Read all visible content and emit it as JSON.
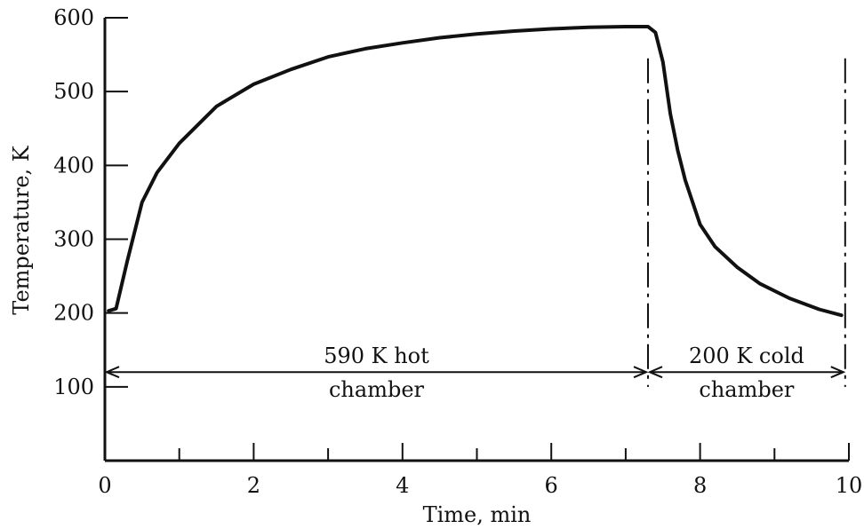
{
  "chart_data": {
    "type": "line",
    "xlabel": "Time, min",
    "ylabel": "Temperature, K",
    "xlim": [
      0,
      10
    ],
    "ylim": [
      0,
      600
    ],
    "x_ticks": [
      0,
      2,
      4,
      6,
      8,
      10
    ],
    "x_minor_ticks": [
      1,
      3,
      5,
      7,
      9
    ],
    "y_ticks": [
      100,
      200,
      300,
      400,
      500,
      600
    ],
    "grid": false,
    "series": [
      {
        "x": [
          0.05,
          0.15,
          0.3,
          0.5,
          0.7,
          1.0,
          1.5,
          2.0,
          2.5,
          3.0,
          3.5,
          4.0,
          4.5,
          5.0,
          5.5,
          6.0,
          6.5,
          7.0,
          7.3,
          7.4,
          7.5,
          7.6,
          7.7,
          7.8,
          8.0,
          8.2,
          8.5,
          8.8,
          9.2,
          9.6,
          9.9
        ],
        "y": [
          203,
          206,
          270,
          350,
          390,
          430,
          480,
          510,
          530,
          547,
          558,
          566,
          573,
          578,
          582,
          585,
          587,
          588,
          588,
          580,
          540,
          470,
          420,
          380,
          320,
          290,
          262,
          240,
          220,
          205,
          197
        ]
      }
    ],
    "phases": [
      {
        "label_line1": "590 K hot",
        "label_line2": "chamber",
        "x_start": 0,
        "x_end": 7.3,
        "y_arrow": 120
      },
      {
        "label_line1": "200 K cold",
        "label_line2": "chamber",
        "x_start": 7.3,
        "x_end": 9.95,
        "y_arrow": 120
      }
    ],
    "phase_boundaries": [
      7.3,
      9.95
    ]
  }
}
